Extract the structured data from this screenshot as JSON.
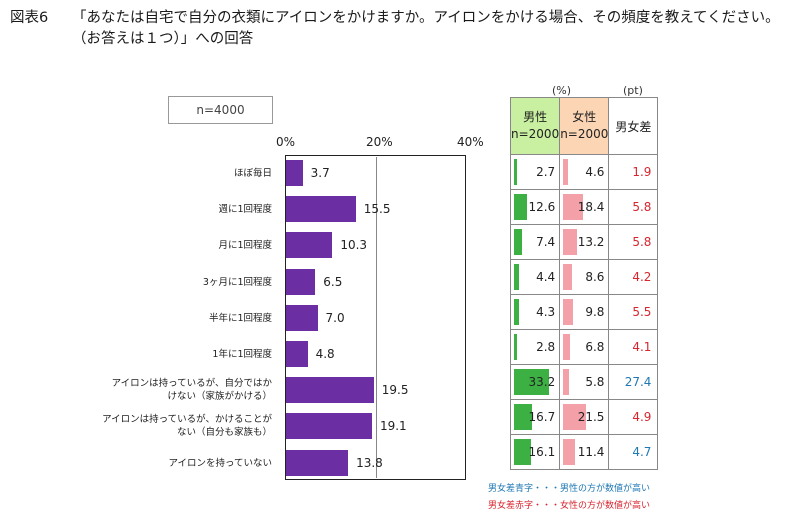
{
  "title": {
    "prefix": "図表6",
    "line1": "「あなたは自宅で自分の衣類にアイロンをかけますか。アイロンをかける場合、その頻度を教えてください。",
    "line2": "（お答えは１つ）」への回答"
  },
  "sample": "n=4000",
  "units": {
    "pct": "(%)",
    "pt": "(pt)"
  },
  "chart_data": {
    "type": "bar",
    "orientation": "horizontal",
    "xlim": [
      0,
      40
    ],
    "ticks": [
      "0%",
      "20%",
      "40%"
    ],
    "categories": [
      [
        "ほぼ毎日"
      ],
      [
        "週に1回程度"
      ],
      [
        "月に1回程度"
      ],
      [
        "3ヶ月に1回程度"
      ],
      [
        "半年に1回程度"
      ],
      [
        "1年に1回程度"
      ],
      [
        "アイロンは持っているが、自分ではか",
        "けない（家族がかける）"
      ],
      [
        "アイロンは持っているが、かけることが",
        "ない（自分も家族も）"
      ],
      [
        "アイロンを持っていない"
      ]
    ],
    "values": [
      3.7,
      15.5,
      10.3,
      6.5,
      7.0,
      4.8,
      19.5,
      19.1,
      13.8
    ],
    "value_labels": [
      "3.7",
      "15.5",
      "10.3",
      "6.5",
      "7.0",
      "4.8",
      "19.5",
      "19.1",
      "13.8"
    ],
    "bar_color": "#6b2fa3"
  },
  "table": {
    "headers": {
      "male": [
        "男性",
        "n=2000"
      ],
      "female": [
        "女性",
        "n=2000"
      ],
      "diff": "男女差"
    },
    "male": [
      2.7,
      12.6,
      7.4,
      4.4,
      4.3,
      2.8,
      33.2,
      16.7,
      16.1
    ],
    "male_labels": [
      "2.7",
      "12.6",
      "7.4",
      "4.4",
      "4.3",
      "2.8",
      "33.2",
      "16.7",
      "16.1"
    ],
    "female": [
      4.6,
      18.4,
      13.2,
      8.6,
      9.8,
      6.8,
      5.8,
      21.5,
      11.4
    ],
    "female_labels": [
      "4.6",
      "18.4",
      "13.2",
      "8.6",
      "9.8",
      "6.8",
      "5.8",
      "21.5",
      "11.4"
    ],
    "diff": [
      "1.9",
      "5.8",
      "5.8",
      "4.2",
      "5.5",
      "4.1",
      "27.4",
      "4.9",
      "4.7"
    ],
    "diff_color": [
      "red",
      "red",
      "red",
      "red",
      "red",
      "red",
      "blue",
      "red",
      "blue"
    ],
    "colors": {
      "male": "#3cb043",
      "female": "#f4a0a8",
      "male_header": "#c8f0a0",
      "female_header": "#fcd5b4"
    }
  },
  "legend": {
    "blue_note": "男女差青字・・・男性の方が数値が高い",
    "red_note": "男女差赤字・・・女性の方が数値が高い"
  }
}
